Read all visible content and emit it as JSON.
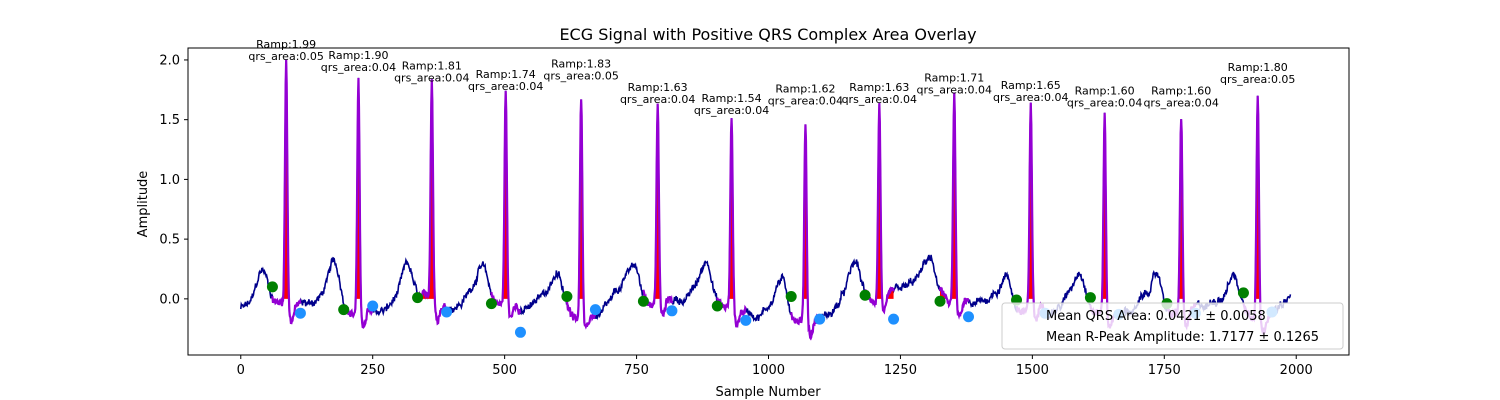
{
  "chart_data": {
    "type": "line",
    "title": "ECG Signal with Positive QRS Complex Area Overlay",
    "xlabel": "Sample Number",
    "ylabel": "Amplitude",
    "xlim": [
      -100,
      2100
    ],
    "ylim": [
      -0.47,
      2.1
    ],
    "xticks": [
      0,
      250,
      500,
      750,
      1000,
      1250,
      1500,
      1750,
      2000
    ],
    "xtick_labels": [
      "0",
      "250",
      "500",
      "750",
      "1000",
      "1250",
      "1500",
      "1750",
      "2000"
    ],
    "yticks": [
      0.0,
      0.5,
      1.0,
      1.5,
      2.0
    ],
    "ytick_labels": [
      "0.0",
      "0.5",
      "1.0",
      "1.5",
      "2.0"
    ],
    "grid": false,
    "legend_position": "bottom-right",
    "colors": {
      "ecg": "#00008b",
      "qrs_segment": "#9400d3",
      "qrs_area": "#ff0000",
      "q_point": "#008000",
      "s_point": "#1e90ff"
    },
    "beats": [
      {
        "q": {
          "x": 60,
          "y": 0.1
        },
        "r": {
          "x": 86,
          "y": 1.99
        },
        "s": {
          "x": 113,
          "y": -0.12
        },
        "label_ramp": "Ramp:1.99",
        "label_area": "qrs_area:0.05"
      },
      {
        "q": {
          "x": 195,
          "y": -0.09
        },
        "r": {
          "x": 223,
          "y": 1.9
        },
        "s": {
          "x": 250,
          "y": -0.06
        },
        "label_ramp": "Ramp:1.90",
        "label_area": "qrs_area:0.04"
      },
      {
        "q": {
          "x": 335,
          "y": 0.01
        },
        "r": {
          "x": 362,
          "y": 1.81
        },
        "s": {
          "x": 390,
          "y": -0.11
        },
        "label_ramp": "Ramp:1.81",
        "label_area": "qrs_area:0.04"
      },
      {
        "q": {
          "x": 475,
          "y": -0.04
        },
        "r": {
          "x": 502,
          "y": 1.74
        },
        "s": {
          "x": 530,
          "y": -0.28
        },
        "label_ramp": "Ramp:1.74",
        "label_area": "qrs_area:0.04"
      },
      {
        "q": {
          "x": 618,
          "y": 0.02
        },
        "r": {
          "x": 645,
          "y": 1.83
        },
        "s": {
          "x": 672,
          "y": -0.09
        },
        "label_ramp": "Ramp:1.83",
        "label_area": "qrs_area:0.05"
      },
      {
        "q": {
          "x": 763,
          "y": -0.02
        },
        "r": {
          "x": 790,
          "y": 1.63
        },
        "s": {
          "x": 817,
          "y": -0.1
        },
        "label_ramp": "Ramp:1.63",
        "label_area": "qrs_area:0.04"
      },
      {
        "q": {
          "x": 903,
          "y": -0.06
        },
        "r": {
          "x": 930,
          "y": 1.54
        },
        "s": {
          "x": 957,
          "y": -0.18
        },
        "label_ramp": "Ramp:1.54",
        "label_area": "qrs_area:0.04"
      },
      {
        "q": {
          "x": 1043,
          "y": 0.02
        },
        "r": {
          "x": 1070,
          "y": 1.62
        },
        "s": {
          "x": 1097,
          "y": -0.17
        },
        "label_ramp": "Ramp:1.62",
        "label_area": "qrs_area:0.04"
      },
      {
        "q": {
          "x": 1183,
          "y": 0.03
        },
        "r": {
          "x": 1210,
          "y": 1.63
        },
        "s": {
          "x": 1237,
          "y": -0.17
        },
        "label_ramp": "Ramp:1.63",
        "label_area": "qrs_area:0.04"
      },
      {
        "q": {
          "x": 1325,
          "y": -0.02
        },
        "r": {
          "x": 1352,
          "y": 1.71
        },
        "s": {
          "x": 1379,
          "y": -0.15
        },
        "label_ramp": "Ramp:1.71",
        "label_area": "qrs_area:0.04"
      },
      {
        "q": {
          "x": 1470,
          "y": -0.01
        },
        "r": {
          "x": 1497,
          "y": 1.65
        },
        "s": {
          "x": 1524,
          "y": -0.12
        },
        "label_ramp": "Ramp:1.65",
        "label_area": "qrs_area:0.04"
      },
      {
        "q": {
          "x": 1610,
          "y": 0.01
        },
        "r": {
          "x": 1637,
          "y": 1.6
        },
        "s": {
          "x": 1664,
          "y": -0.13
        },
        "label_ramp": "Ramp:1.60",
        "label_area": "qrs_area:0.04"
      },
      {
        "q": {
          "x": 1755,
          "y": -0.04
        },
        "r": {
          "x": 1782,
          "y": 1.6
        },
        "s": {
          "x": 1809,
          "y": -0.12
        },
        "label_ramp": "Ramp:1.60",
        "label_area": "qrs_area:0.04"
      },
      {
        "q": {
          "x": 1900,
          "y": 0.05
        },
        "r": {
          "x": 1927,
          "y": 1.8
        },
        "s": {
          "x": 1954,
          "y": -0.11
        },
        "label_ramp": "Ramp:1.80",
        "label_area": "qrs_area:0.05"
      }
    ],
    "legend": [
      {
        "label": "Mean QRS Area: 0.0421 ± 0.0058"
      },
      {
        "label": "Mean R-Peak Amplitude: 1.7177 ± 0.1265"
      }
    ]
  }
}
